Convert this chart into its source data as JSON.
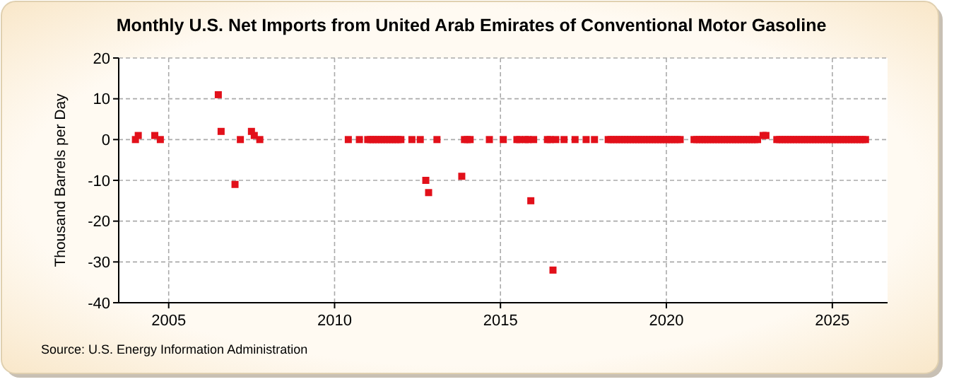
{
  "chart_data": {
    "type": "scatter",
    "title": "Monthly U.S. Net Imports from United Arab Emirates of Conventional Motor Gasoline",
    "ylabel": "Thousand Barrels per Day",
    "annotations": [
      "Source: U.S. Energy Information Administration"
    ],
    "x": [
      "2004-01",
      "2004-02",
      "2004-08",
      "2004-10",
      "2006-07",
      "2006-08",
      "2007-01",
      "2007-03",
      "2007-07",
      "2007-08",
      "2007-10",
      "2010-06",
      "2010-10",
      "2011-01",
      "2011-02",
      "2011-03",
      "2011-04",
      "2011-05",
      "2011-06",
      "2011-07",
      "2011-08",
      "2011-09",
      "2011-10",
      "2011-11",
      "2011-12",
      "2012-01",
      "2012-05",
      "2012-08",
      "2012-10",
      "2012-11",
      "2013-02",
      "2013-11",
      "2013-12",
      "2014-01",
      "2014-02",
      "2014-09",
      "2015-02",
      "2015-07",
      "2015-08",
      "2015-10",
      "2015-11",
      "2015-12",
      "2016-01",
      "2016-06",
      "2016-07",
      "2016-08",
      "2016-09",
      "2016-12",
      "2017-04",
      "2017-08",
      "2017-11",
      "2018-04",
      "2018-05",
      "2018-06",
      "2018-07",
      "2018-08",
      "2018-09",
      "2018-10",
      "2018-11",
      "2018-12",
      "2019-01",
      "2019-02",
      "2019-03",
      "2019-04",
      "2019-05",
      "2019-06",
      "2019-07",
      "2019-08",
      "2019-09",
      "2019-10",
      "2019-11",
      "2019-12",
      "2020-01",
      "2020-02",
      "2020-03",
      "2020-04",
      "2020-05",
      "2020-06",
      "2020-11",
      "2020-12",
      "2021-01",
      "2021-02",
      "2021-03",
      "2021-04",
      "2021-05",
      "2021-06",
      "2021-07",
      "2021-08",
      "2021-09",
      "2021-10",
      "2021-11",
      "2021-12",
      "2022-01",
      "2022-02",
      "2022-03",
      "2022-04",
      "2022-05",
      "2022-06",
      "2022-07",
      "2022-08",
      "2022-09",
      "2022-10",
      "2022-12",
      "2023-01",
      "2023-05",
      "2023-06",
      "2023-07",
      "2023-08",
      "2023-09",
      "2023-10",
      "2023-11",
      "2023-12",
      "2024-01",
      "2024-02",
      "2024-03",
      "2024-04",
      "2024-05",
      "2024-06",
      "2024-07",
      "2024-08",
      "2024-09",
      "2024-10",
      "2024-11",
      "2024-12",
      "2025-01",
      "2025-02",
      "2025-03",
      "2025-04",
      "2025-05",
      "2025-06",
      "2025-07",
      "2025-08",
      "2025-09",
      "2025-10",
      "2025-11",
      "2025-12",
      "2026-01"
    ],
    "series": [
      {
        "color": "#e2101a",
        "values": [
          0,
          1,
          1,
          0,
          11,
          2,
          -11,
          0,
          2,
          1,
          0,
          0,
          0,
          0,
          0,
          0,
          0,
          0,
          0,
          0,
          0,
          0,
          0,
          0,
          0,
          0,
          0,
          0,
          -10,
          -13,
          0,
          -9,
          0,
          0,
          0,
          0,
          0,
          0,
          0,
          0,
          0,
          -15,
          0,
          0,
          0,
          -32,
          0,
          0,
          0,
          0,
          0,
          0,
          0,
          0,
          0,
          0,
          0,
          0,
          0,
          0,
          0,
          0,
          0,
          0,
          0,
          0,
          0,
          0,
          0,
          0,
          0,
          0,
          0,
          0,
          0,
          0,
          0,
          0,
          0,
          0,
          0,
          0,
          0,
          0,
          0,
          0,
          0,
          0,
          0,
          0,
          0,
          0,
          0,
          0,
          0,
          0,
          0,
          0,
          0,
          0,
          0,
          0,
          1,
          1,
          0,
          0,
          0,
          0,
          0,
          0,
          0,
          0,
          0,
          0,
          0,
          0,
          0,
          0,
          0,
          0,
          0,
          0,
          0,
          0,
          0,
          0,
          0,
          0,
          0,
          0,
          0,
          0,
          0,
          0,
          0,
          0,
          0
        ]
      }
    ],
    "xlim": [
      "2003-07",
      "2026-09"
    ],
    "xticks": [
      "2005",
      "2010",
      "2015",
      "2020",
      "2025"
    ],
    "ylim": [
      -40,
      20
    ],
    "yticks": [
      20,
      10,
      0,
      -10,
      -20,
      -30,
      -40
    ],
    "grid": true,
    "marker": "square"
  }
}
